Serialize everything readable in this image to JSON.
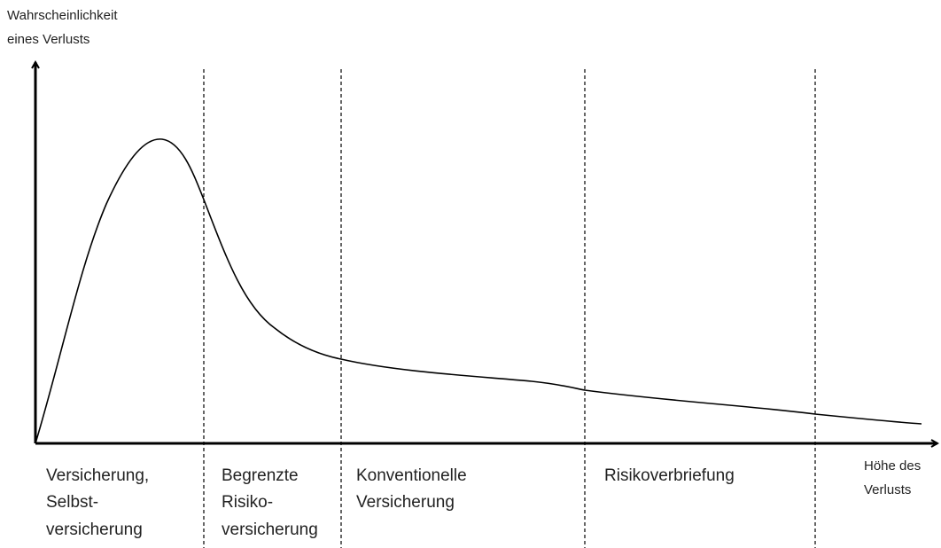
{
  "y_axis_label": [
    "Wahrscheinlichkeit",
    "eines Verlusts"
  ],
  "x_axis_label": [
    "Höhe des",
    "Verlusts"
  ],
  "regions": [
    {
      "label": [
        "Versicherung,",
        "Selbst-",
        "versicherung"
      ]
    },
    {
      "label": [
        "Begrenzte",
        "Risiko-",
        "versicherung"
      ]
    },
    {
      "label": [
        "Konventionelle",
        "Versicherung"
      ]
    },
    {
      "label": [
        "Risikoverbriefung"
      ]
    }
  ]
}
